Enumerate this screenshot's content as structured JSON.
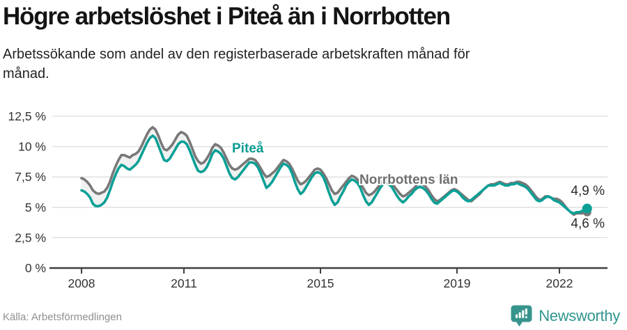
{
  "header": {
    "title": "Högre arbetslöshet i Piteå än i Norrbotten",
    "subtitle": "Arbetssökande som andel av den registerbaserade arbetskraften månad för månad."
  },
  "footer": {
    "source": "Källa: Arbetsförmedlingen",
    "brand": "Newsworthy"
  },
  "colors": {
    "pitea": "#0aa096",
    "norrbotten": "#787878",
    "grid": "#dddddd",
    "axis": "#3f3f3f",
    "tick_text": "#333333",
    "between_fill": "rgba(120,120,120,0.10)",
    "brand_teal": "#37948c"
  },
  "chart_data": {
    "type": "line",
    "title": "Högre arbetslöshet i Piteå än i Norrbotten",
    "subtitle": "Arbetssökande som andel av den registerbaserade arbetskraften månad för månad.",
    "xlabel": "",
    "ylabel": "",
    "x_frequency": "monthly",
    "x_start": "2008-01",
    "x_end": "2022-10",
    "ylim": [
      0,
      12.5
    ],
    "grid": "horizontal",
    "legend_position": "inline-labels",
    "y_ticks": [
      {
        "label": "12,5 %",
        "value": 12.5
      },
      {
        "label": "10 %",
        "value": 10
      },
      {
        "label": "7,5 %",
        "value": 7.5
      },
      {
        "label": "5 %",
        "value": 5
      },
      {
        "label": "2,5 %",
        "value": 2.5
      },
      {
        "label": "0 %",
        "value": 0
      }
    ],
    "x_ticks": [
      {
        "label": "2008",
        "year": 2008
      },
      {
        "label": "2011",
        "year": 2011
      },
      {
        "label": "2015",
        "year": 2015
      },
      {
        "label": "2019",
        "year": 2019
      },
      {
        "label": "2022",
        "year": 2022
      }
    ],
    "series": [
      {
        "name": "Norrbottens län",
        "color": "#787878",
        "end_label": "4,6 %",
        "end_value": 4.6,
        "values": [
          7.4,
          7.3,
          7.1,
          6.8,
          6.4,
          6.2,
          6.1,
          6.2,
          6.3,
          6.6,
          7.1,
          7.8,
          8.4,
          8.9,
          9.3,
          9.3,
          9.2,
          9.1,
          9.3,
          9.4,
          9.6,
          10.0,
          10.5,
          11.0,
          11.4,
          11.6,
          11.4,
          10.9,
          10.3,
          9.8,
          9.7,
          9.9,
          10.2,
          10.6,
          11.0,
          11.2,
          11.1,
          10.9,
          10.4,
          9.8,
          9.2,
          8.8,
          8.6,
          8.7,
          9.0,
          9.4,
          9.9,
          10.2,
          10.1,
          9.9,
          9.5,
          9.0,
          8.5,
          8.2,
          8.1,
          8.2,
          8.4,
          8.6,
          8.8,
          9.0,
          9.0,
          8.9,
          8.6,
          8.2,
          7.8,
          7.5,
          7.6,
          7.8,
          8.0,
          8.3,
          8.6,
          8.9,
          8.8,
          8.6,
          8.2,
          7.7,
          7.2,
          6.9,
          7.0,
          7.2,
          7.5,
          7.8,
          8.1,
          8.2,
          8.1,
          7.8,
          7.4,
          6.9,
          6.4,
          6.1,
          6.2,
          6.5,
          6.8,
          7.1,
          7.4,
          7.6,
          7.5,
          7.3,
          7.0,
          6.6,
          6.2,
          6.0,
          6.1,
          6.3,
          6.6,
          6.9,
          7.2,
          7.3,
          7.2,
          7.0,
          6.7,
          6.4,
          6.1,
          5.9,
          6.0,
          6.2,
          6.4,
          6.6,
          6.9,
          7.0,
          6.9,
          6.7,
          6.4,
          6.0,
          5.7,
          5.5,
          5.6,
          5.8,
          6.0,
          6.2,
          6.4,
          6.5,
          6.4,
          6.2,
          6.0,
          5.8,
          5.6,
          5.5,
          5.7,
          5.9,
          6.1,
          6.4,
          6.6,
          6.8,
          6.9,
          6.9,
          7.0,
          7.1,
          7.0,
          6.9,
          6.9,
          7.0,
          7.0,
          7.1,
          7.1,
          7.0,
          6.9,
          6.7,
          6.4,
          6.1,
          5.8,
          5.6,
          5.7,
          5.9,
          5.9,
          5.8,
          5.7,
          5.7,
          5.6,
          5.4,
          5.1,
          4.8,
          4.6,
          4.4,
          4.5,
          4.5,
          4.5,
          4.6
        ]
      },
      {
        "name": "Piteå",
        "color": "#0aa096",
        "end_label": "4,9 %",
        "end_value": 4.9,
        "values": [
          6.4,
          6.3,
          6.1,
          5.8,
          5.3,
          5.1,
          5.1,
          5.2,
          5.4,
          5.8,
          6.4,
          7.1,
          7.7,
          8.2,
          8.5,
          8.4,
          8.2,
          8.1,
          8.3,
          8.5,
          8.8,
          9.3,
          9.8,
          10.3,
          10.7,
          10.9,
          10.7,
          10.1,
          9.5,
          8.9,
          8.8,
          9.0,
          9.4,
          9.8,
          10.2,
          10.4,
          10.4,
          10.2,
          9.7,
          9.1,
          8.5,
          8.0,
          7.9,
          8.0,
          8.3,
          8.8,
          9.4,
          9.7,
          9.6,
          9.4,
          9.0,
          8.4,
          7.8,
          7.4,
          7.3,
          7.5,
          7.8,
          8.1,
          8.4,
          8.7,
          8.7,
          8.6,
          8.3,
          7.8,
          7.2,
          6.6,
          6.8,
          7.1,
          7.5,
          7.9,
          8.3,
          8.6,
          8.5,
          8.3,
          7.8,
          7.1,
          6.5,
          6.1,
          6.3,
          6.7,
          7.1,
          7.5,
          7.8,
          7.9,
          7.8,
          7.5,
          6.9,
          6.2,
          5.6,
          5.2,
          5.4,
          5.9,
          6.3,
          6.8,
          7.1,
          7.3,
          7.2,
          7.0,
          6.6,
          6.0,
          5.5,
          5.2,
          5.4,
          5.8,
          6.2,
          6.6,
          6.9,
          7.0,
          6.9,
          6.7,
          6.3,
          5.9,
          5.6,
          5.4,
          5.6,
          5.9,
          6.1,
          6.4,
          6.6,
          6.7,
          6.6,
          6.4,
          6.1,
          5.7,
          5.4,
          5.3,
          5.5,
          5.7,
          5.9,
          6.1,
          6.3,
          6.4,
          6.3,
          6.1,
          5.8,
          5.6,
          5.5,
          5.6,
          5.8,
          6.0,
          6.2,
          6.4,
          6.6,
          6.8,
          6.8,
          6.8,
          6.9,
          7.0,
          6.9,
          6.8,
          6.8,
          6.9,
          6.9,
          7.0,
          6.9,
          6.8,
          6.7,
          6.5,
          6.2,
          5.9,
          5.6,
          5.5,
          5.6,
          5.8,
          5.9,
          5.8,
          5.6,
          5.5,
          5.4,
          5.2,
          5.0,
          4.8,
          4.6,
          4.5,
          4.6,
          4.6,
          4.7,
          4.9
        ]
      }
    ]
  }
}
